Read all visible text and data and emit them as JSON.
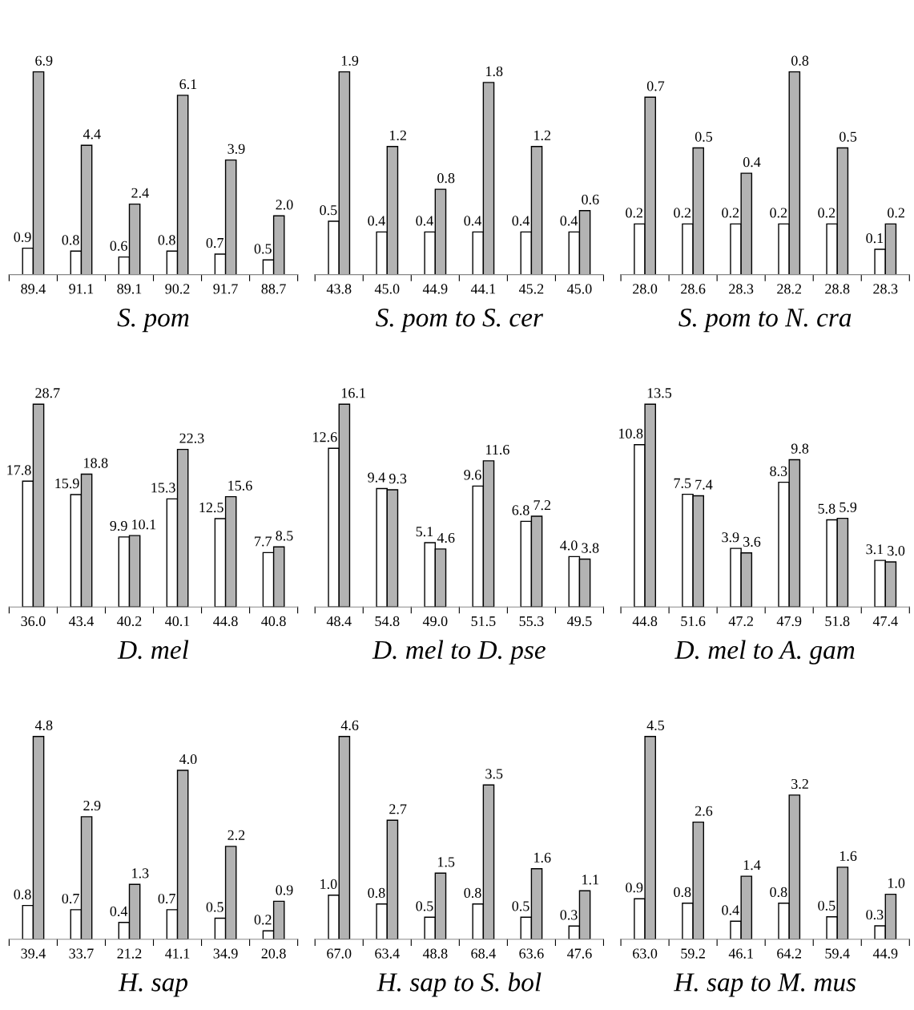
{
  "chart_data": [
    {
      "type": "bar",
      "xlabel": "S. pom",
      "categories": [
        "89.4",
        "91.1",
        "89.1",
        "90.2",
        "91.7",
        "88.7"
      ],
      "series": [
        {
          "color": "#ffffff",
          "values": [
            0.9,
            0.8,
            0.6,
            0.8,
            0.7,
            0.5
          ],
          "value_labels": [
            "0.9",
            "0.8",
            "0.6",
            "0.8",
            "0.7",
            "0.5"
          ]
        },
        {
          "color": "#b3b3b3",
          "values": [
            6.9,
            4.4,
            2.4,
            6.1,
            3.9,
            2.0
          ],
          "value_labels": [
            "6.9",
            "4.4",
            "2.4",
            "6.1",
            "3.9",
            "2.0"
          ]
        }
      ]
    },
    {
      "type": "bar",
      "xlabel": "S. pom to S. cer",
      "categories": [
        "43.8",
        "45.0",
        "44.9",
        "44.1",
        "45.2",
        "45.0"
      ],
      "series": [
        {
          "color": "#ffffff",
          "values": [
            0.5,
            0.4,
            0.4,
            0.4,
            0.4,
            0.4
          ],
          "value_labels": [
            "0.5",
            "0.4",
            "0.4",
            "0.4",
            "0.4",
            "0.4"
          ]
        },
        {
          "color": "#b3b3b3",
          "values": [
            1.9,
            1.2,
            0.8,
            1.8,
            1.2,
            0.6
          ],
          "value_labels": [
            "1.9",
            "1.2",
            "0.8",
            "1.8",
            "1.2",
            "0.6"
          ]
        }
      ]
    },
    {
      "type": "bar",
      "xlabel": "S. pom to N. cra",
      "categories": [
        "28.0",
        "28.6",
        "28.3",
        "28.2",
        "28.8",
        "28.3"
      ],
      "series": [
        {
          "color": "#ffffff",
          "values": [
            0.2,
            0.2,
            0.2,
            0.2,
            0.2,
            0.1
          ],
          "value_labels": [
            "0.2",
            "0.2",
            "0.2",
            "0.2",
            "0.2",
            "0.1"
          ]
        },
        {
          "color": "#b3b3b3",
          "values": [
            0.7,
            0.5,
            0.4,
            0.8,
            0.5,
            0.2
          ],
          "value_labels": [
            "0.7",
            "0.5",
            "0.4",
            "0.8",
            "0.5",
            "0.2"
          ]
        }
      ]
    },
    {
      "type": "bar",
      "xlabel": "D. mel",
      "categories": [
        "36.0",
        "43.4",
        "40.2",
        "40.1",
        "44.8",
        "40.8"
      ],
      "series": [
        {
          "color": "#ffffff",
          "values": [
            17.8,
            15.9,
            9.9,
            15.3,
            12.5,
            7.7
          ],
          "value_labels": [
            "17.8",
            "15.9",
            "9.9",
            "15.3",
            "12.5",
            "7.7"
          ]
        },
        {
          "color": "#b3b3b3",
          "values": [
            28.7,
            18.8,
            10.1,
            22.3,
            15.6,
            8.5
          ],
          "value_labels": [
            "28.7",
            "18.8",
            "10.1",
            "22.3",
            "15.6",
            "8.5"
          ]
        }
      ]
    },
    {
      "type": "bar",
      "xlabel": "D. mel to D. pse",
      "categories": [
        "48.4",
        "54.8",
        "49.0",
        "51.5",
        "55.3",
        "49.5"
      ],
      "series": [
        {
          "color": "#ffffff",
          "values": [
            12.6,
            9.4,
            5.1,
            9.6,
            6.8,
            4.0
          ],
          "value_labels": [
            "12.6",
            "9.4",
            "5.1",
            "9.6",
            "6.8",
            "4.0"
          ]
        },
        {
          "color": "#b3b3b3",
          "values": [
            16.1,
            9.3,
            4.6,
            11.6,
            7.2,
            3.8
          ],
          "value_labels": [
            "16.1",
            "9.3",
            "4.6",
            "11.6",
            "7.2",
            "3.8"
          ]
        }
      ]
    },
    {
      "type": "bar",
      "xlabel": "D. mel to A. gam",
      "categories": [
        "44.8",
        "51.6",
        "47.2",
        "47.9",
        "51.8",
        "47.4"
      ],
      "series": [
        {
          "color": "#ffffff",
          "values": [
            10.8,
            7.5,
            3.9,
            8.3,
            5.8,
            3.1
          ],
          "value_labels": [
            "10.8",
            "7.5",
            "3.9",
            "8.3",
            "5.8",
            "3.1"
          ]
        },
        {
          "color": "#b3b3b3",
          "values": [
            13.5,
            7.4,
            3.6,
            9.8,
            5.9,
            3.0
          ],
          "value_labels": [
            "13.5",
            "7.4",
            "3.6",
            "9.8",
            "5.9",
            "3.0"
          ]
        }
      ]
    },
    {
      "type": "bar",
      "xlabel": "H. sap",
      "categories": [
        "39.4",
        "33.7",
        "21.2",
        "41.1",
        "34.9",
        "20.8"
      ],
      "series": [
        {
          "color": "#ffffff",
          "values": [
            0.8,
            0.7,
            0.4,
            0.7,
            0.5,
            0.2
          ],
          "value_labels": [
            "0.8",
            "0.7",
            "0.4",
            "0.7",
            "0.5",
            "0.2"
          ]
        },
        {
          "color": "#b3b3b3",
          "values": [
            4.8,
            2.9,
            1.3,
            4.0,
            2.2,
            0.9
          ],
          "value_labels": [
            "4.8",
            "2.9",
            "1.3",
            "4.0",
            "2.2",
            "0.9"
          ]
        }
      ]
    },
    {
      "type": "bar",
      "xlabel": "H. sap to S. bol",
      "categories": [
        "67.0",
        "63.4",
        "48.8",
        "68.4",
        "63.6",
        "47.6"
      ],
      "series": [
        {
          "color": "#ffffff",
          "values": [
            1.0,
            0.8,
            0.5,
            0.8,
            0.5,
            0.3
          ],
          "value_labels": [
            "1.0",
            "0.8",
            "0.5",
            "0.8",
            "0.5",
            "0.3"
          ]
        },
        {
          "color": "#b3b3b3",
          "values": [
            4.6,
            2.7,
            1.5,
            3.5,
            1.6,
            1.1
          ],
          "value_labels": [
            "4.6",
            "2.7",
            "1.5",
            "3.5",
            "1.6",
            "1.1"
          ]
        }
      ]
    },
    {
      "type": "bar",
      "xlabel": "H. sap to M. mus",
      "categories": [
        "63.0",
        "59.2",
        "46.1",
        "64.2",
        "59.4",
        "44.9"
      ],
      "series": [
        {
          "color": "#ffffff",
          "values": [
            0.9,
            0.8,
            0.4,
            0.8,
            0.5,
            0.3
          ],
          "value_labels": [
            "0.9",
            "0.8",
            "0.4",
            "0.8",
            "0.5",
            "0.3"
          ]
        },
        {
          "color": "#b3b3b3",
          "values": [
            4.5,
            2.6,
            1.4,
            3.2,
            1.6,
            1.0
          ],
          "value_labels": [
            "4.5",
            "2.6",
            "1.4",
            "3.2",
            "1.6",
            "1.0"
          ]
        }
      ]
    }
  ]
}
